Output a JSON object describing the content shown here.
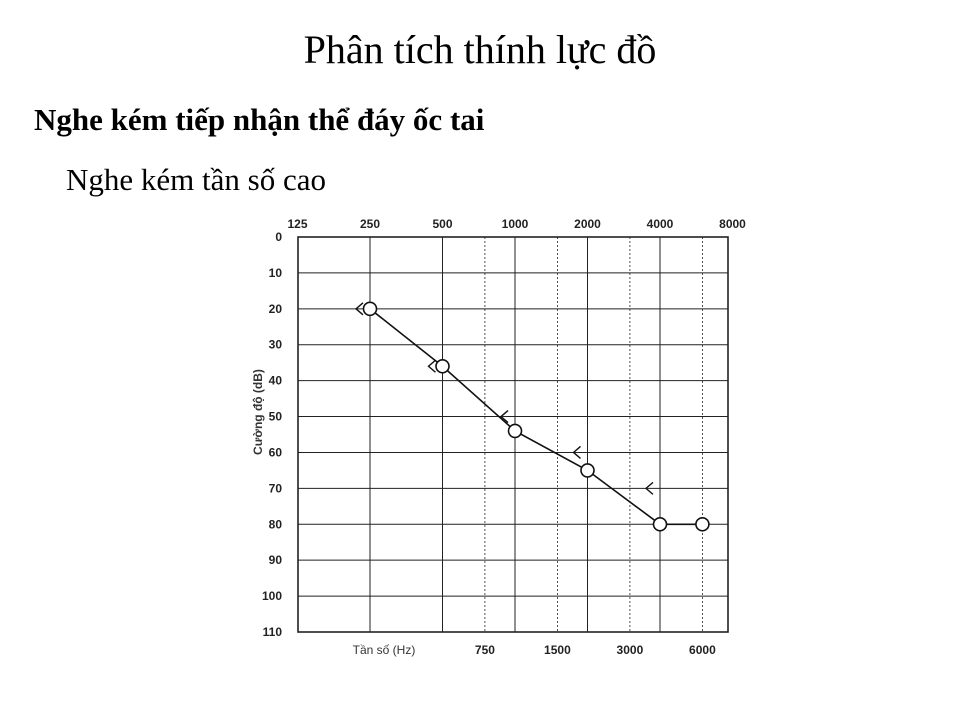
{
  "slide": {
    "title": "Phân tích thính lực đồ",
    "heading": "Nghe kém tiếp nhận thể đáy ốc tai",
    "subheading": "Nghe kém tần số cao"
  },
  "chart_data": {
    "type": "line",
    "title": "",
    "ylabel": "Cường độ (dB)",
    "xlabel": "Tần số (Hz)",
    "y_inverted": true,
    "ylim": [
      0,
      110
    ],
    "yticks": [
      0,
      10,
      20,
      30,
      40,
      50,
      60,
      70,
      80,
      90,
      100,
      110
    ],
    "x_scale": "log2",
    "xlim": [
      125,
      8000
    ],
    "x_top_ticks": [
      125,
      250,
      500,
      1000,
      2000,
      4000,
      8000
    ],
    "x_bottom_ticks": [
      750,
      1500,
      3000,
      6000
    ],
    "grid": true,
    "legend": "none",
    "series": [
      {
        "marker": "circle",
        "connected": true,
        "x": [
          250,
          500,
          1000,
          2000,
          4000,
          6000
        ],
        "y": [
          20,
          36,
          54,
          65,
          80,
          80
        ]
      },
      {
        "marker": "bracket-left",
        "connected": false,
        "x": [
          250,
          500,
          1000,
          2000,
          4000
        ],
        "y": [
          20,
          36,
          50,
          60,
          70
        ]
      }
    ],
    "colors": {
      "line": "#111111",
      "grid": "#222222",
      "marker_fill": "#ffffff"
    }
  }
}
